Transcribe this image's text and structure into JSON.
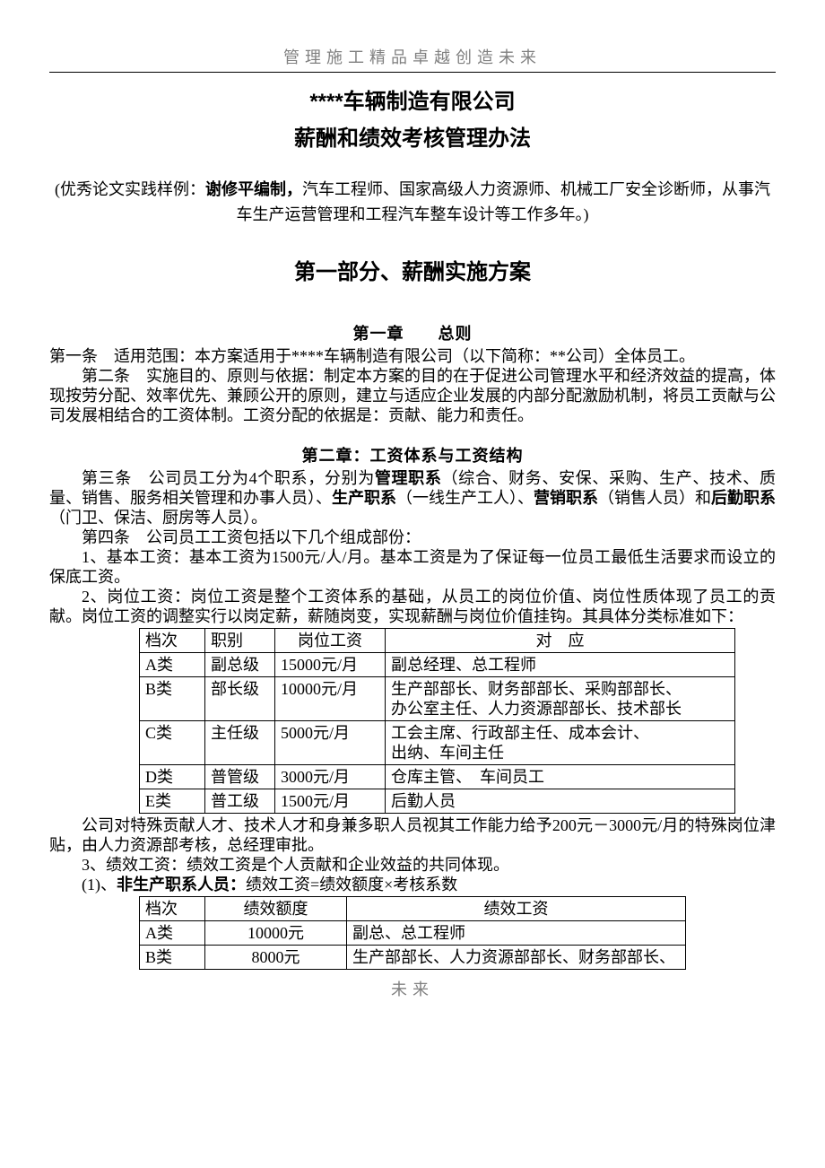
{
  "header": "管理施工精品卓越创造未来",
  "title1": "****车辆制造有限公司",
  "title2": "薪酬和绩效考核管理办法",
  "author_prefix": "(优秀论文实践样例：",
  "author_name": "谢修平编制，",
  "author_body": "汽车工程师、国家高级人力资源师、机械工厂安全诊断师，从事汽车生产运营管理和工程汽车整车设计等工作多年。)",
  "part1_title": "第一部分、薪酬实施方案",
  "chapter1_title": "第一章　　总则",
  "article1": "第一条　适用范围：本方案适用于****车辆制造有限公司（以下简称：**公司）全体员工。",
  "article2": "第二条　实施目的、原则与依据：制定本方案的目的在于促进公司管理水平和经济效益的提高，体现按劳分配、效率优先、兼顾公开的原则，建立与适应企业发展的内部分配激励机制，将员工贡献与公司发展相结合的工资体制。工资分配的依据是：贡献、能力和责任。",
  "chapter2_title": "第二章：工资体系与工资结构",
  "a3_pre": "第三条　公司员工分为4个职系，分别为",
  "a3_b1": "管理职系",
  "a3_m1": "（综合、财务、安保、采购、生产、技术、质量、销售、服务相关管理和办事人员）、",
  "a3_b2": "生产职系",
  "a3_m2": "（一线生产工人）、",
  "a3_b3": "营销职系",
  "a3_m3": "（销售人员）和",
  "a3_b4": "后勤职系",
  "a3_m4": "（门卫、保洁、厨房等人员）。",
  "article4": "第四条　公司员工工资包括以下几个组成部份：",
  "item1": "1、基本工资：基本工资为1500元/人/月。基本工资是为了保证每一位员工最低生活要求而设立的保底工资。",
  "item2": "2、岗位工资：岗位工资是整个工资体系的基础，从员工的岗位价值、岗位性质体现了员工的贡献。岗位工资的调整实行以岗定薪，薪随岗变，实现薪酬与岗位价值挂钩。其具体分类标准如下：",
  "table1": {
    "headers": [
      "档次",
      "职别",
      "岗位工资",
      "对　应"
    ],
    "rows": [
      [
        "A类",
        "副总级",
        "15000元/月",
        "副总经理、总工程师"
      ],
      [
        "B类",
        "部长级",
        "10000元/月",
        "生产部部长、财务部部长、采购部部长、\n办公室主任、人力资源部部长、技术部长"
      ],
      [
        "C类",
        "主任级",
        "5000元/月",
        "工会主席、行政部主任、成本会计、\n出纳、车间主任"
      ],
      [
        "D类",
        "普管级",
        "3000元/月",
        "仓库主管、　车间员工"
      ],
      [
        "E类",
        "普工级",
        "1500元/月",
        "后勤人员"
      ]
    ]
  },
  "after_t1": "公司对特殊贡献人才、技术人才和身兼多职人员视其工作能力给予200元－3000元/月的特殊岗位津贴，由人力资源部考核，总经理审批。",
  "item3": "3、绩效工资：绩效工资是个人贡献和企业效益的共同体现。",
  "sub31_pre": "(1)、",
  "sub31_b": "非生产职系人员：",
  "sub31_post": "绩效工资=绩效额度×考核系数",
  "table2": {
    "headers": [
      "档次",
      "绩效额度",
      "绩效工资"
    ],
    "rows": [
      [
        "A类",
        "10000元",
        "副总、总工程师"
      ],
      [
        "B类",
        "8000元",
        "生产部部长、人力资源部部长、财务部部长、"
      ]
    ]
  },
  "footer": "未来"
}
